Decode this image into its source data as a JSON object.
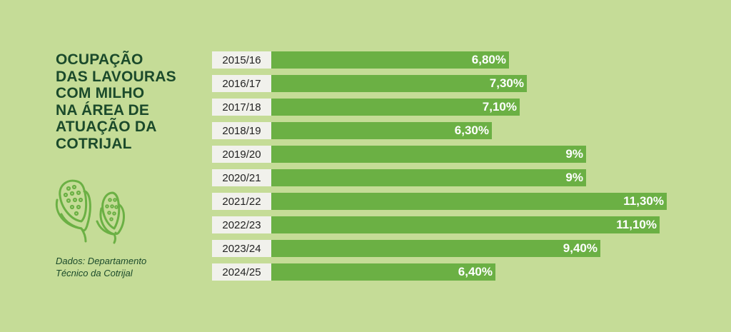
{
  "title_lines": [
    "OCUPAÇÃO",
    "DAS LAVOURAS",
    "COM MILHO",
    "NA ÁREA DE",
    "ATUAÇÃO DA",
    "COTRIJAL"
  ],
  "source_lines": [
    "Dados: Departamento",
    "Técnico da Cotrijal"
  ],
  "icon": "corn-icon",
  "colors": {
    "background": "#c5dc97",
    "bar": "#6bb044",
    "title": "#1b4a2b",
    "label_box": "#f1f1ec",
    "icon_stroke": "#6bb044"
  },
  "chart_data": {
    "type": "bar",
    "orientation": "horizontal",
    "title": "OCUPAÇÃO DAS LAVOURAS COM MILHO NA ÁREA DE ATUAÇÃO DA COTRIJAL",
    "categories": [
      "2015/16",
      "2016/17",
      "2017/18",
      "2018/19",
      "2019/20",
      "2020/21",
      "2021/22",
      "2022/23",
      "2023/24",
      "2024/25"
    ],
    "values": [
      6.8,
      7.3,
      7.1,
      6.3,
      9,
      9,
      11.3,
      11.1,
      9.4,
      6.4
    ],
    "value_labels": [
      "6,80%",
      "7,30%",
      "7,10%",
      "6,30%",
      "9%",
      "9%",
      "11,30%",
      "11,10%",
      "9,40%",
      "6,40%"
    ],
    "unit": "%",
    "grid": false,
    "legend": "none"
  }
}
